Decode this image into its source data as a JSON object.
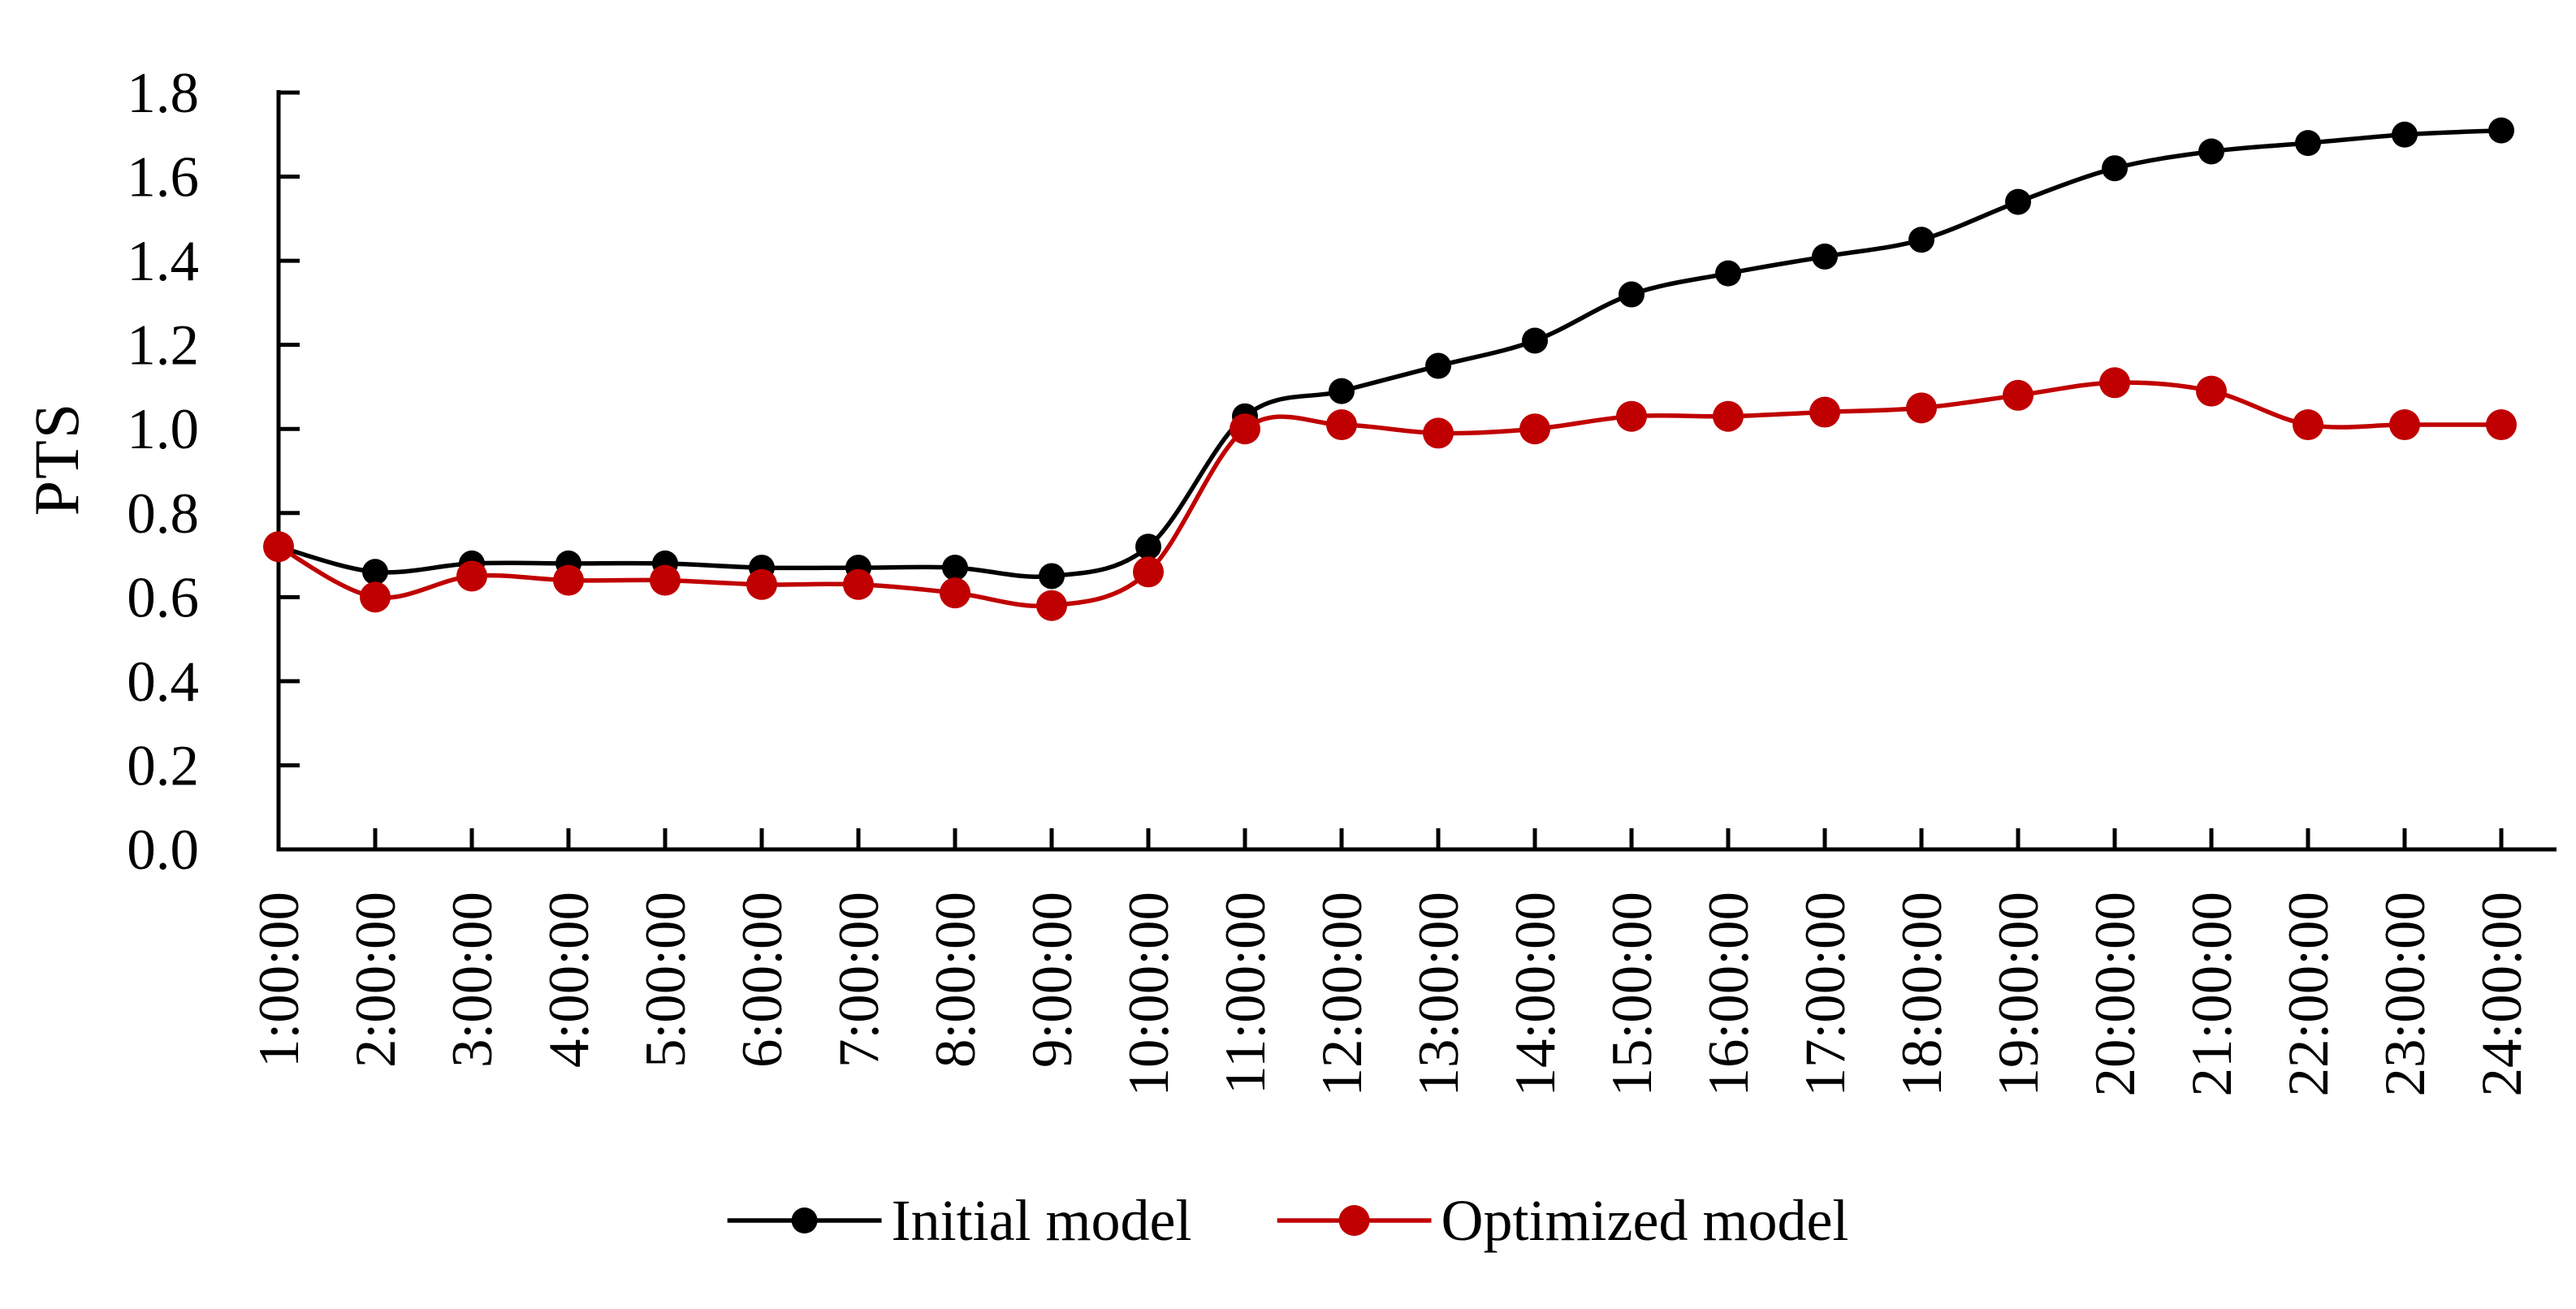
{
  "figure": {
    "background_color": "#ffffff",
    "axis_color": "#000000"
  },
  "chart_data": {
    "type": "line",
    "title": "",
    "xlabel": "",
    "ylabel": "PTS",
    "ylim": [
      0.0,
      1.8
    ],
    "ytick_step": 0.2,
    "ytick_labels": [
      "0.0",
      "0.2",
      "0.4",
      "0.6",
      "0.8",
      "1.0",
      "1.2",
      "1.4",
      "1.6",
      "1.8"
    ],
    "grid": false,
    "legend_position": "bottom-center",
    "categories": [
      "1:00:00",
      "2:00:00",
      "3:00:00",
      "4:00:00",
      "5:00:00",
      "6:00:00",
      "7:00:00",
      "8:00:00",
      "9:00:00",
      "10:00:00",
      "11:00:00",
      "12:00:00",
      "13:00:00",
      "14:00:00",
      "15:00:00",
      "16:00:00",
      "17:00:00",
      "18:00:00",
      "19:00:00",
      "20:00:00",
      "21:00:00",
      "22:00:00",
      "23:00:00",
      "24:00:00"
    ],
    "series": [
      {
        "name": "Initial model",
        "color": "#000000",
        "marker": "circle",
        "marker_radius": 16,
        "values": [
          0.72,
          0.66,
          0.68,
          0.68,
          0.68,
          0.67,
          0.67,
          0.67,
          0.65,
          0.72,
          1.03,
          1.09,
          1.15,
          1.21,
          1.32,
          1.37,
          1.41,
          1.45,
          1.54,
          1.62,
          1.66,
          1.68,
          1.7,
          1.71
        ]
      },
      {
        "name": "Optimized model",
        "color": "#C00000",
        "marker": "circle",
        "marker_radius": 19,
        "values": [
          0.72,
          0.6,
          0.65,
          0.64,
          0.64,
          0.63,
          0.63,
          0.61,
          0.58,
          0.66,
          1.0,
          1.01,
          0.99,
          1.0,
          1.03,
          1.03,
          1.04,
          1.05,
          1.08,
          1.11,
          1.09,
          1.01,
          1.01,
          1.01
        ]
      }
    ]
  }
}
